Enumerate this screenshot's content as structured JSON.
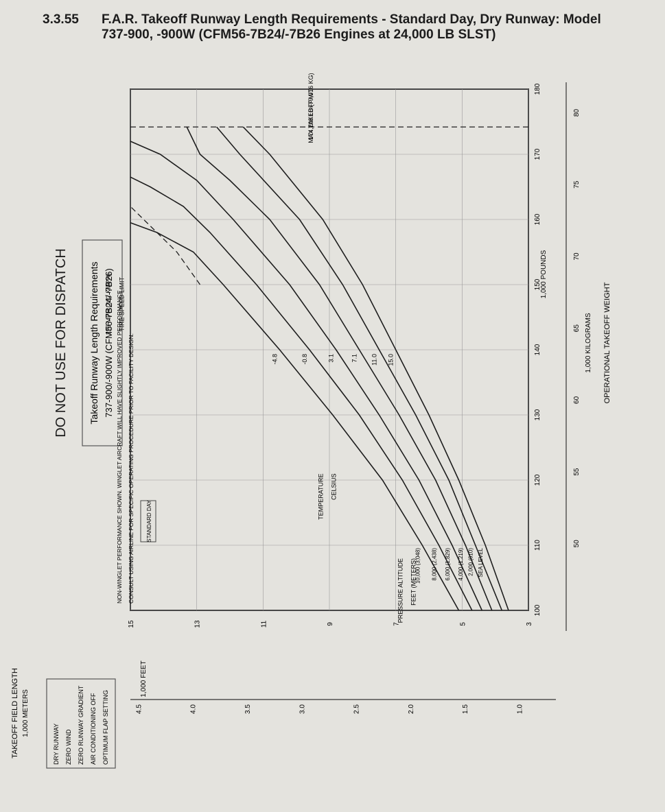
{
  "header": {
    "section_number": "3.3.55",
    "title": "F.A.R. Takeoff Runway Length Requirements - Standard Day, Dry Runway: Model 737-900, -900W (CFM56-7B24/-7B26 Engines at 24,000 LB SLST)"
  },
  "banner": "DO NOT USE FOR DISPATCH",
  "title_box": {
    "line1": "Takeoff Runway Length Requirements",
    "line2": "737-900/-900W (CFM56-7B24/-7B26)"
  },
  "conditions": [
    "DRY RUNWAY",
    "ZERO WIND",
    "ZERO RUNWAY GRADIENT",
    "AIR CONDITIONING OFF",
    "OPTIMUM FLAP SETTING"
  ],
  "note": {
    "line1": "NON-WINGLET PERFORMANCE SHOWN. WINGLET AIRCRAFT WILL HAVE SLIGHTLY IMPROVED PERFORMANCE.",
    "line2": "CONSULT USING AIRLINE FOR SPECIFIC OPERATING PROCEDURE PRIOR TO FACILITY DESIGN."
  },
  "standard_day_label": "STANDARD DAY",
  "max_takeoff": {
    "label": "MAX TAKEOFF WT",
    "value": "174,200 LB (79,016 KG)"
  },
  "tire_speed_limit": {
    "line1": "225 MPH (362 KMPH)",
    "line2": "TIRE SPEED LIMIT"
  },
  "altitude_header": {
    "line1": "PRESSURE ALTITUDE",
    "line2": "FEET (METERS)"
  },
  "temperature_header": {
    "line1": "TEMPERATURE",
    "line2": "CELSIUS"
  },
  "chart_data": {
    "type": "line",
    "xlabel": "OPERATIONAL TAKEOFF WEIGHT",
    "x_unit_primary": "1,000 POUNDS",
    "x_unit_secondary": "1,000 KILOGRAMS",
    "ylabel": "TAKEOFF FIELD LENGTH",
    "y_unit_primary": "1,000 FEET",
    "y_unit_secondary": "1,000 METERS",
    "xlim": [
      100,
      180
    ],
    "ylim": [
      3,
      15
    ],
    "x_ticks": [
      "100",
      "110",
      "120",
      "130",
      "140",
      "150",
      "160",
      "170",
      "180"
    ],
    "x_ticks_secondary": [
      "50",
      "55",
      "60",
      "65",
      "70",
      "75",
      "80"
    ],
    "y_ticks": [
      "3",
      "5",
      "7",
      "9",
      "11",
      "13",
      "15"
    ],
    "y_ticks_secondary": [
      "1.0",
      "1.5",
      "2.0",
      "2.5",
      "3.0",
      "3.5",
      "4.0",
      "4.5"
    ],
    "series": [
      {
        "name": "SEA LEVEL",
        "temp": "15.0",
        "values": [
          [
            100,
            3.6
          ],
          [
            110,
            4.3
          ],
          [
            120,
            5.1
          ],
          [
            130,
            6.0
          ],
          [
            140,
            7.0
          ],
          [
            150,
            8.0
          ],
          [
            160,
            9.2
          ],
          [
            170,
            10.8
          ],
          [
            174.2,
            11.6
          ]
        ]
      },
      {
        "name": "2,000 (610)",
        "temp": "11.0",
        "values": [
          [
            100,
            3.8
          ],
          [
            110,
            4.6
          ],
          [
            120,
            5.4
          ],
          [
            130,
            6.4
          ],
          [
            140,
            7.5
          ],
          [
            150,
            8.6
          ],
          [
            160,
            9.9
          ],
          [
            170,
            11.7
          ],
          [
            174.2,
            12.4
          ]
        ]
      },
      {
        "name": "4,000 (1,219)",
        "temp": "7.1",
        "values": [
          [
            100,
            4.1
          ],
          [
            110,
            4.9
          ],
          [
            120,
            5.8
          ],
          [
            130,
            6.9
          ],
          [
            140,
            8.1
          ],
          [
            150,
            9.3
          ],
          [
            160,
            10.8
          ],
          [
            166,
            12.0
          ],
          [
            170,
            12.9
          ],
          [
            174.2,
            13.3
          ]
        ]
      },
      {
        "name": "6,000 (1,829)",
        "temp": "3.1",
        "values": [
          [
            100,
            4.4
          ],
          [
            110,
            5.3
          ],
          [
            120,
            6.3
          ],
          [
            130,
            7.5
          ],
          [
            140,
            8.8
          ],
          [
            150,
            10.2
          ],
          [
            160,
            11.9
          ],
          [
            166,
            13.0
          ],
          [
            170,
            14.1
          ],
          [
            172,
            15.0
          ]
        ]
      },
      {
        "name": "8,000 (2,438)",
        "temp": "-0.8",
        "values": [
          [
            100,
            4.7
          ],
          [
            110,
            5.7
          ],
          [
            120,
            6.8
          ],
          [
            130,
            8.1
          ],
          [
            140,
            9.6
          ],
          [
            150,
            11.2
          ],
          [
            158,
            12.6
          ],
          [
            162,
            13.4
          ],
          [
            165,
            14.4
          ],
          [
            166.5,
            15.0
          ]
        ]
      },
      {
        "name": "10,000 (3,048)",
        "temp": "-4.8",
        "values": [
          [
            100,
            5.1
          ],
          [
            110,
            6.2
          ],
          [
            120,
            7.4
          ],
          [
            130,
            8.9
          ],
          [
            140,
            10.5
          ],
          [
            150,
            12.2
          ],
          [
            155,
            13.1
          ],
          [
            158,
            14.2
          ],
          [
            159.5,
            15.0
          ]
        ]
      }
    ],
    "tire_speed_limit": [
      [
        150,
        12.9
      ],
      [
        155,
        13.6
      ],
      [
        160,
        14.6
      ],
      [
        162,
        15.0
      ]
    ],
    "max_takeoff_weight": 174.2
  }
}
